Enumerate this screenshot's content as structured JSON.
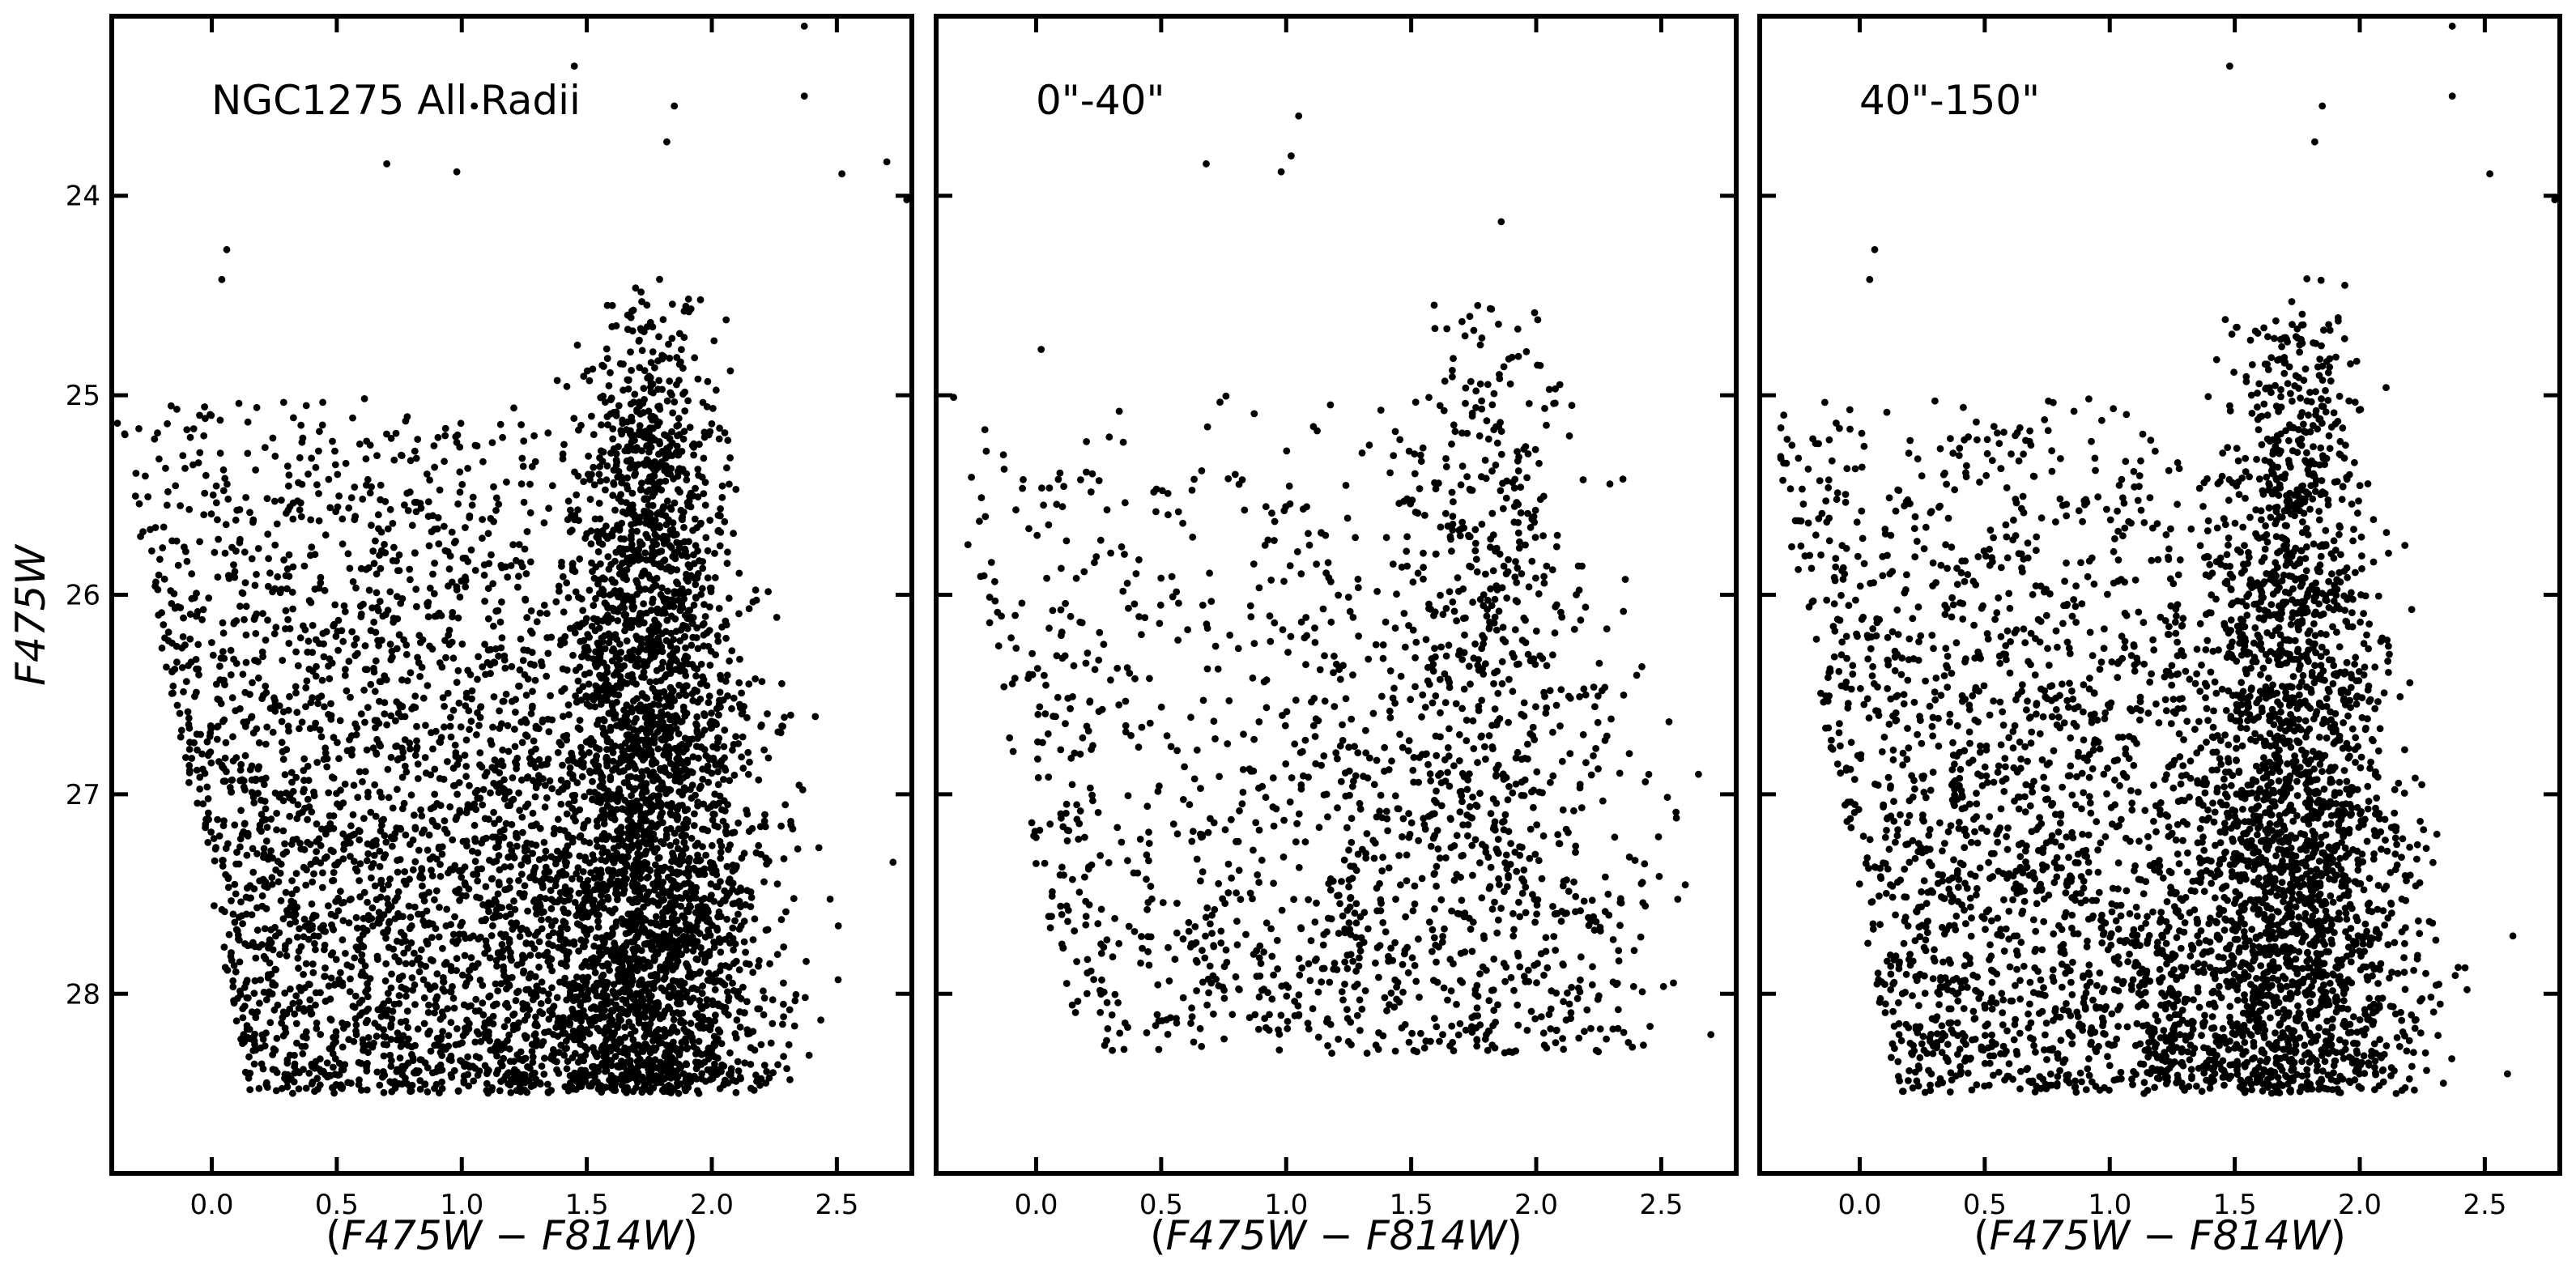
{
  "chart_data": [
    {
      "type": "scatter",
      "panel_label": "NGC1275 All Radii",
      "xlabel": {
        "open": "(",
        "a": "F475W",
        "op": " − ",
        "b": "F814W",
        "close": ")"
      },
      "ylabel": "F475W",
      "xlim": [
        -0.4,
        2.8
      ],
      "ylim": [
        28.9,
        23.1
      ],
      "y_inverted": true,
      "x_ticks": [
        "0.0",
        "0.5",
        "1.0",
        "1.5",
        "2.0",
        "2.5"
      ],
      "y_ticks": [
        "24",
        "25",
        "26",
        "27",
        "28"
      ],
      "point_count_estimate": 6000,
      "distribution": {
        "red_giant_branch": {
          "color_center": 1.7,
          "color_spread": 0.16,
          "mag_top": 24.4,
          "mag_bottom": 28.5
        },
        "blue_plume": {
          "color_range": [
            -0.4,
            1.3
          ],
          "mag_range": [
            25.0,
            28.5
          ]
        },
        "notable_points": [
          [
            2.37,
            23.15
          ],
          [
            2.37,
            23.5
          ],
          [
            1.45,
            23.35
          ],
          [
            1.05,
            23.55
          ],
          [
            1.85,
            23.55
          ],
          [
            1.82,
            23.73
          ],
          [
            0.7,
            23.84
          ],
          [
            0.98,
            23.88
          ],
          [
            2.52,
            23.89
          ],
          [
            2.7,
            23.83
          ],
          [
            2.78,
            24.02
          ],
          [
            0.04,
            24.42
          ],
          [
            0.06,
            24.27
          ]
        ]
      }
    },
    {
      "type": "scatter",
      "panel_label": "0\"-40\"",
      "xlabel": {
        "open": "(",
        "a": "F475W",
        "op": " − ",
        "b": "F814W",
        "close": ")"
      },
      "ylabel": "",
      "xlim": [
        -0.4,
        2.8
      ],
      "ylim": [
        28.9,
        23.1
      ],
      "y_inverted": true,
      "x_ticks": [
        "0.0",
        "0.5",
        "1.0",
        "1.5",
        "2.0",
        "2.5"
      ],
      "y_ticks": [],
      "point_count_estimate": 1700,
      "distribution": {
        "red_giant_branch": {
          "color_center": 1.75,
          "color_spread": 0.22,
          "mag_top": 24.4,
          "mag_bottom": 28.3
        },
        "blue_plume": {
          "color_range": [
            -0.4,
            1.3
          ],
          "mag_range": [
            25.0,
            28.3
          ]
        },
        "notable_points": [
          [
            1.05,
            23.6
          ],
          [
            1.02,
            23.8
          ],
          [
            0.98,
            23.88
          ],
          [
            0.68,
            23.84
          ],
          [
            0.02,
            24.77
          ],
          [
            1.86,
            24.13
          ]
        ]
      }
    },
    {
      "type": "scatter",
      "panel_label": "40\"-150\"",
      "xlabel": {
        "open": "(",
        "a": "F475W",
        "op": " − ",
        "b": "F814W",
        "close": ")"
      },
      "ylabel": "",
      "xlim": [
        -0.4,
        2.8
      ],
      "ylim": [
        28.9,
        23.1
      ],
      "y_inverted": true,
      "x_ticks": [
        "0.0",
        "0.5",
        "1.0",
        "1.5",
        "2.0",
        "2.5"
      ],
      "y_ticks": [],
      "point_count_estimate": 4500,
      "distribution": {
        "red_giant_branch": {
          "color_center": 1.68,
          "color_spread": 0.16,
          "mag_top": 24.4,
          "mag_bottom": 28.5
        },
        "blue_plume": {
          "color_range": [
            -0.4,
            1.3
          ],
          "mag_range": [
            25.0,
            28.5
          ]
        },
        "notable_points": [
          [
            2.37,
            23.15
          ],
          [
            2.37,
            23.5
          ],
          [
            1.48,
            23.35
          ],
          [
            1.85,
            23.55
          ],
          [
            1.82,
            23.73
          ],
          [
            2.52,
            23.89
          ],
          [
            2.78,
            24.02
          ],
          [
            0.04,
            24.42
          ],
          [
            0.06,
            24.27
          ]
        ]
      }
    }
  ]
}
